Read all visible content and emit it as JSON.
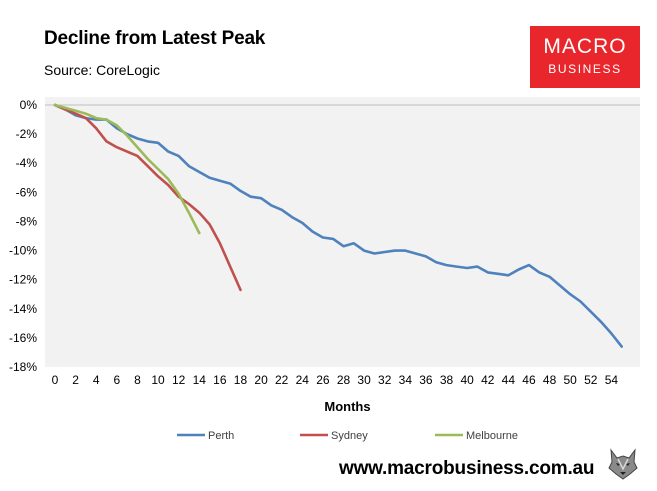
{
  "header": {
    "title": "Decline from Latest Peak",
    "subtitle": "Source: CoreLogic"
  },
  "logo": {
    "line1": "MACRO",
    "line2": "BUSINESS",
    "bg_color": "#e8262c"
  },
  "footer": {
    "url": "www.macrobusiness.com.au",
    "mascot_icon": "wolf-head-icon"
  },
  "chart_data": {
    "type": "line",
    "title": "Decline from Latest Peak",
    "subtitle": "Source: CoreLogic",
    "xlabel": "Months",
    "ylabel": "",
    "xlim": [
      0,
      56
    ],
    "ylim": [
      -18,
      0
    ],
    "x_ticks": [
      0,
      2,
      4,
      6,
      8,
      10,
      12,
      14,
      16,
      18,
      20,
      22,
      24,
      26,
      28,
      30,
      32,
      34,
      36,
      38,
      40,
      42,
      44,
      46,
      48,
      50,
      52,
      54
    ],
    "y_ticks": [
      0,
      -2,
      -4,
      -6,
      -8,
      -10,
      -12,
      -14,
      -16,
      -18
    ],
    "y_tick_labels": [
      "0%",
      "-2%",
      "-4%",
      "-6%",
      "-8%",
      "-10%",
      "-12%",
      "-14%",
      "-16%",
      "-18%"
    ],
    "plot_background": "#f2f2f2",
    "grid": false,
    "legend_position": "bottom",
    "series": [
      {
        "name": "Perth",
        "color": "#4f81bd",
        "x": [
          0,
          1,
          2,
          3,
          4,
          5,
          6,
          7,
          8,
          9,
          10,
          11,
          12,
          13,
          14,
          15,
          16,
          17,
          18,
          19,
          20,
          21,
          22,
          23,
          24,
          25,
          26,
          27,
          28,
          29,
          30,
          31,
          32,
          33,
          34,
          35,
          36,
          37,
          38,
          39,
          40,
          41,
          42,
          43,
          44,
          45,
          46,
          47,
          48,
          49,
          50,
          51,
          52,
          53,
          54,
          55
        ],
        "values": [
          0,
          -0.3,
          -0.7,
          -0.9,
          -1.0,
          -1.0,
          -1.6,
          -2.0,
          -2.3,
          -2.5,
          -2.6,
          -3.2,
          -3.5,
          -4.2,
          -4.6,
          -5.0,
          -5.2,
          -5.4,
          -5.9,
          -6.3,
          -6.4,
          -6.9,
          -7.2,
          -7.7,
          -8.1,
          -8.7,
          -9.1,
          -9.2,
          -9.7,
          -9.5,
          -10.0,
          -10.2,
          -10.1,
          -10.0,
          -10.0,
          -10.2,
          -10.4,
          -10.8,
          -11.0,
          -11.1,
          -11.2,
          -11.1,
          -11.5,
          -11.6,
          -11.7,
          -11.3,
          -11.0,
          -11.5,
          -11.8,
          -12.4,
          -13.0,
          -13.5,
          -14.2,
          -14.9,
          -15.7,
          -16.6
        ]
      },
      {
        "name": "Sydney",
        "color": "#c0504d",
        "x": [
          0,
          1,
          2,
          3,
          4,
          5,
          6,
          7,
          8,
          9,
          10,
          11,
          12,
          13,
          14,
          15,
          16,
          17,
          18
        ],
        "values": [
          0,
          -0.3,
          -0.6,
          -0.9,
          -1.6,
          -2.5,
          -2.9,
          -3.2,
          -3.5,
          -4.2,
          -4.9,
          -5.5,
          -6.3,
          -6.8,
          -7.4,
          -8.2,
          -9.5,
          -11.1,
          -12.7
        ]
      },
      {
        "name": "Melbourne",
        "color": "#9bbb59",
        "x": [
          0,
          1,
          2,
          3,
          4,
          5,
          6,
          7,
          8,
          9,
          10,
          11,
          12,
          13,
          14
        ],
        "values": [
          0,
          -0.2,
          -0.4,
          -0.6,
          -0.9,
          -1.0,
          -1.4,
          -2.1,
          -2.9,
          -3.7,
          -4.4,
          -5.1,
          -6.1,
          -7.4,
          -8.8
        ]
      }
    ]
  }
}
